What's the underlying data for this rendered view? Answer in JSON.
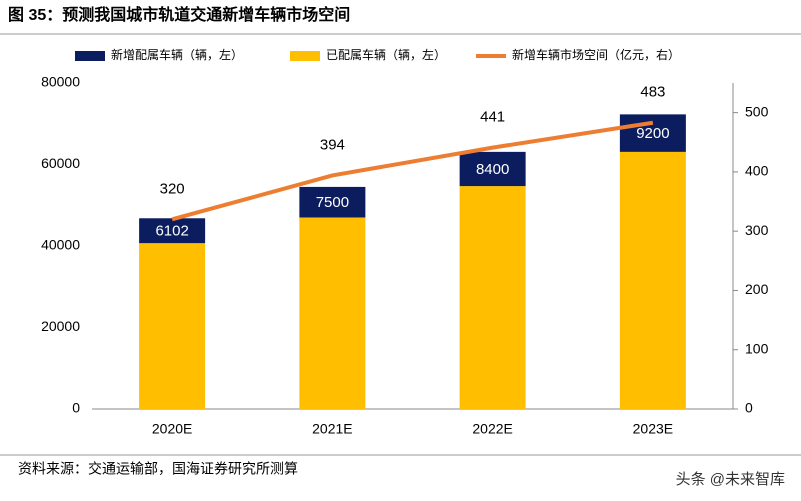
{
  "chart_data": {
    "type": "bar-line",
    "title": "图 35：预测我国城市轨道交通新增车辆市场空间",
    "source": "资料来源：交通运输部，国海证券研究所测算",
    "watermark": "头条 @未来智库",
    "categories": [
      "2020E",
      "2021E",
      "2022E",
      "2023E"
    ],
    "series": [
      {
        "name": "新增配属车辆（辆，左）",
        "type": "bar",
        "color": "#0b1d5e",
        "values": [
          6102,
          7500,
          8400,
          9200
        ]
      },
      {
        "name": "已配属车辆（辆，左）",
        "type": "bar",
        "color": "#ffbf00",
        "values": [
          40700,
          47000,
          54700,
          63100
        ]
      },
      {
        "name": "新增车辆市场空间（亿元，右）",
        "type": "line",
        "axis": "y2",
        "color": "#ed7d31",
        "values": [
          320,
          394,
          441,
          483
        ]
      }
    ],
    "ylim": [
      0,
      80000
    ],
    "yticks": [
      0,
      20000,
      40000,
      60000,
      80000
    ],
    "y2lim": [
      0,
      550
    ],
    "y2ticks": [
      0,
      100,
      200,
      300,
      400,
      500
    ]
  }
}
